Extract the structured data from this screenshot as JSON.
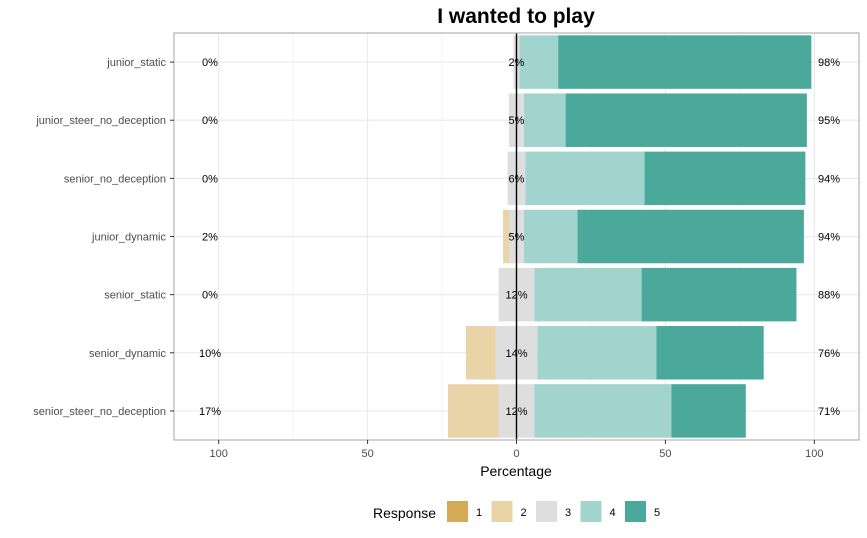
{
  "chart_data": {
    "type": "bar",
    "title": "I wanted to play",
    "xlabel": "Percentage",
    "ylabel": "",
    "xlim": [
      -115,
      115
    ],
    "x_ticks": [
      -100,
      -50,
      0,
      50,
      100
    ],
    "x_tick_labels": [
      "100",
      "50",
      "0",
      "50",
      "100"
    ],
    "grid": true,
    "legend_position": "bottom",
    "legend": {
      "title": "Response",
      "items": [
        {
          "label": "1",
          "color": "#D4AA56"
        },
        {
          "label": "2",
          "color": "#E8D4A6"
        },
        {
          "label": "3",
          "color": "#DEDEDE"
        },
        {
          "label": "4",
          "color": "#A0D4CD"
        },
        {
          "label": "5",
          "color": "#4BA99B"
        }
      ]
    },
    "categories": [
      "junior_static",
      "junior_steer_no_deception",
      "senior_no_deception",
      "junior_dynamic",
      "senior_static",
      "senior_dynamic",
      "senior_steer_no_deception"
    ],
    "series": [
      {
        "name": "1",
        "values": [
          0,
          0,
          0,
          0,
          0,
          0,
          0
        ]
      },
      {
        "name": "2",
        "values": [
          0,
          0,
          0,
          2,
          0,
          10,
          17
        ]
      },
      {
        "name": "3",
        "values": [
          2,
          5,
          6,
          5,
          12,
          14,
          12
        ]
      },
      {
        "name": "4",
        "values": [
          13,
          14,
          40,
          18,
          36,
          40,
          46
        ]
      },
      {
        "name": "5",
        "values": [
          85,
          81,
          54,
          76,
          52,
          36,
          25
        ]
      }
    ],
    "left_labels": [
      "0%",
      "0%",
      "0%",
      "2%",
      "0%",
      "10%",
      "17%"
    ],
    "center_labels": [
      "2%",
      "5%",
      "6%",
      "5%",
      "12%",
      "14%",
      "12%"
    ],
    "right_labels": [
      "98%",
      "95%",
      "94%",
      "94%",
      "88%",
      "76%",
      "71%"
    ]
  }
}
